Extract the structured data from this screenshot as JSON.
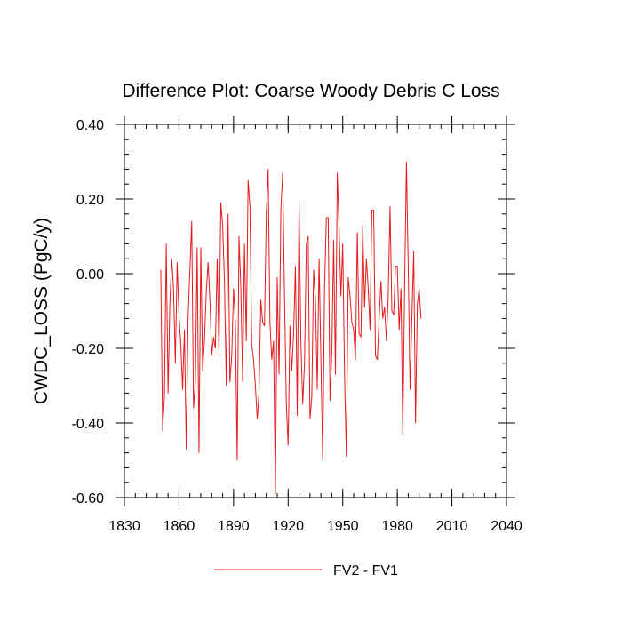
{
  "chart_data": {
    "type": "line",
    "title": "Difference Plot: Coarse Woody Debris C Loss",
    "xlabel": "",
    "ylabel": "CWDC_LOSS  (PgC/y)",
    "xlim": [
      1830,
      2040
    ],
    "ylim": [
      -0.6,
      0.4
    ],
    "x_ticks": [
      1830,
      1860,
      1890,
      1920,
      1950,
      1980,
      2010,
      2040
    ],
    "x_tick_labels": [
      "1830",
      "1860",
      "1890",
      "1920",
      "1950",
      "1980",
      "2010",
      "2040"
    ],
    "y_ticks": [
      0.4,
      0.2,
      0.0,
      -0.2,
      -0.4,
      -0.6
    ],
    "y_tick_labels": [
      "0.40",
      "0.20",
      "0.00",
      "-0.20",
      "-0.40",
      "-0.60"
    ],
    "legend_position": "bottom-center",
    "series": [
      {
        "name": "FV2 - FV1",
        "color": "#e41a1c",
        "x_start": 1850,
        "x_step": 1,
        "values": [
          0.01,
          -0.42,
          -0.33,
          0.08,
          -0.32,
          -0.08,
          0.04,
          -0.04,
          -0.24,
          0.03,
          -0.11,
          -0.19,
          -0.31,
          -0.15,
          -0.47,
          -0.12,
          0.01,
          0.14,
          -0.36,
          -0.29,
          0.07,
          -0.48,
          0.07,
          -0.26,
          -0.18,
          -0.05,
          0.03,
          -0.07,
          -0.22,
          -0.17,
          -0.2,
          0.04,
          -0.22,
          0.19,
          0.13,
          -0.02,
          -0.3,
          0.16,
          -0.29,
          -0.22,
          -0.04,
          -0.13,
          -0.5,
          0.1,
          -0.04,
          -0.29,
          0.08,
          -0.18,
          0.25,
          0.18,
          -0.19,
          -0.23,
          -0.3,
          -0.39,
          -0.32,
          -0.07,
          -0.13,
          -0.14,
          0.16,
          0.28,
          -0.13,
          -0.23,
          -0.18,
          -0.59,
          -0.01,
          -0.27,
          0.17,
          0.27,
          -0.06,
          -0.35,
          -0.46,
          -0.14,
          -0.26,
          -0.16,
          0.02,
          -0.38,
          0.19,
          -0.18,
          -0.35,
          -0.24,
          0.08,
          0.1,
          -0.39,
          -0.33,
          0.01,
          -0.07,
          -0.31,
          0.04,
          -0.23,
          -0.5,
          -0.04,
          0.15,
          0.15,
          -0.34,
          -0.21,
          0.09,
          -0.27,
          0.27,
          0.12,
          -0.06,
          0.08,
          -0.27,
          -0.49,
          -0.01,
          -0.06,
          -0.13,
          -0.15,
          -0.23,
          0.11,
          -0.16,
          -0.17,
          0.13,
          -0.09,
          0.04,
          -0.04,
          -0.15,
          0.17,
          0.17,
          -0.22,
          -0.23,
          -0.12,
          -0.02,
          -0.12,
          -0.09,
          -0.18,
          -0.06,
          0.18,
          -0.1,
          -0.11,
          0.02,
          0.02,
          -0.15,
          -0.04,
          -0.43,
          -0.04,
          0.3,
          0.02,
          -0.31,
          -0.12,
          0.06,
          -0.4,
          -0.08,
          -0.04,
          -0.12
        ]
      }
    ]
  }
}
